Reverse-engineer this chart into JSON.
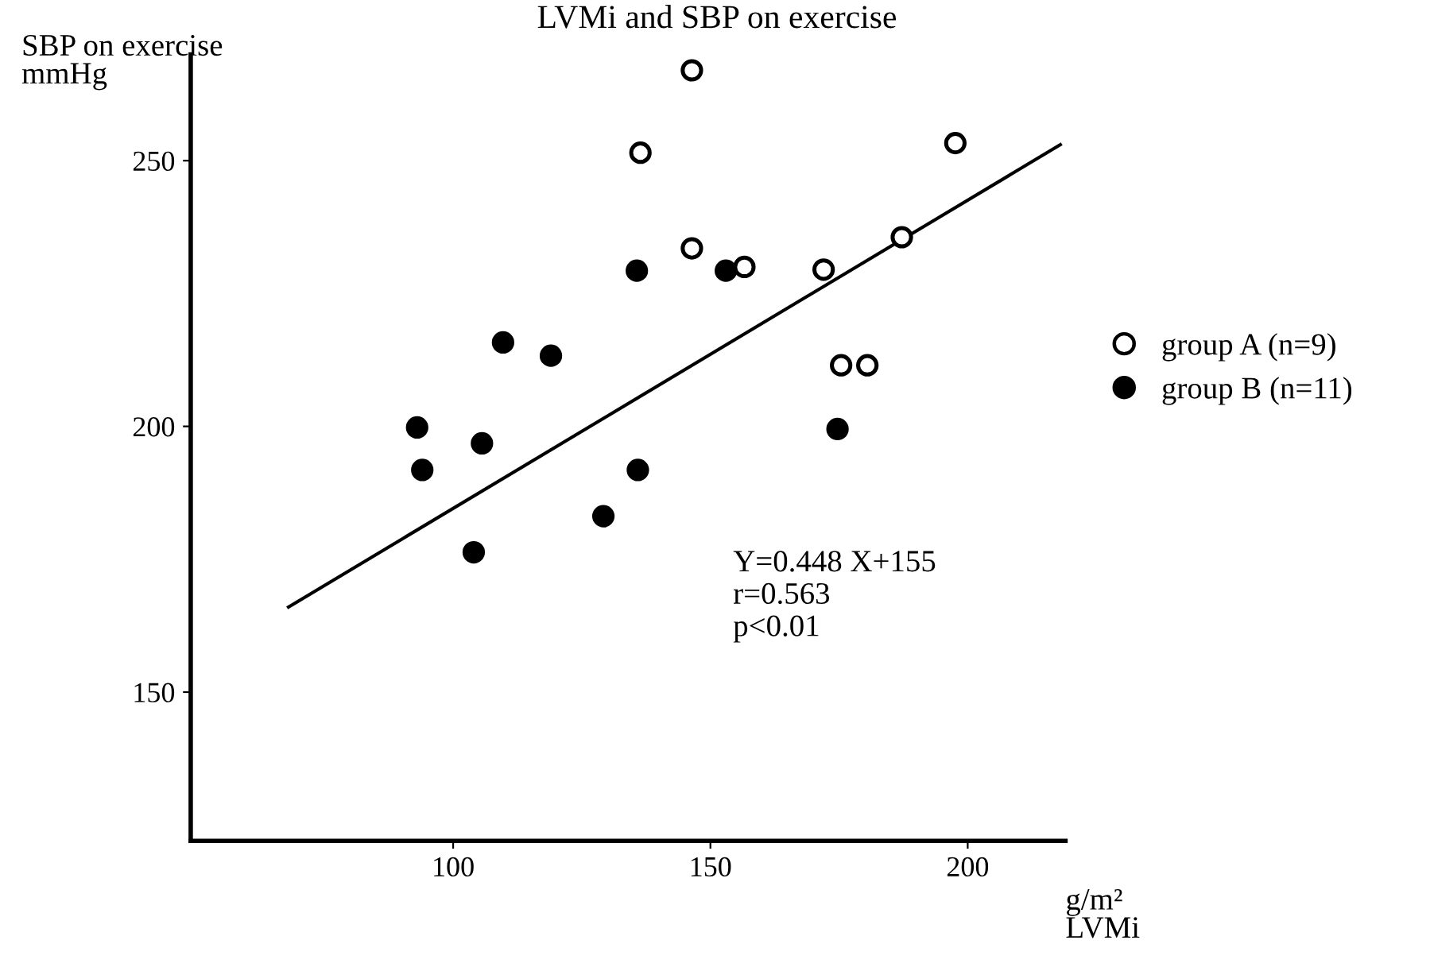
{
  "chart_data": {
    "type": "scatter",
    "title": "LVMi and SBP on exercise",
    "ylabel": "SBP on exercise\nmmHg",
    "xlabel": "g/m²\nLVMi",
    "xlim": [
      49,
      219
    ],
    "ylim": [
      122,
      270
    ],
    "xticks": [
      100,
      150,
      200
    ],
    "yticks": [
      150,
      200,
      250
    ],
    "grid": false,
    "legend": "right",
    "marker": "circle",
    "series": [
      {
        "name": "group A (n=9)",
        "color": "#ffffff",
        "x": [
          146.4,
          136.4,
          197.6,
          146.4,
          156.6,
          172,
          187.2,
          175.4,
          180.5
        ],
        "values": [
          267,
          251.5,
          253.3,
          233.5,
          230,
          229.5,
          235.6,
          211.5,
          211.5
        ]
      },
      {
        "name": "group B (n=11)",
        "color": "#000000",
        "x": [
          135.7,
          153,
          109.7,
          119,
          93,
          174.7,
          105.6,
          94,
          135.9,
          129.2,
          104
        ],
        "values": [
          229.3,
          229.3,
          215.8,
          213.3,
          199.8,
          199.5,
          196.8,
          191.8,
          191.8,
          183.1,
          176.3
        ]
      },
      {
        "type": "line",
        "color": "#000000",
        "x": [
          68,
          218
        ],
        "values": [
          166,
          253
        ],
        "marker": "none"
      }
    ],
    "annotations": [
      "Y=0.448 X+155\nr=0.563\np<0.01"
    ]
  }
}
